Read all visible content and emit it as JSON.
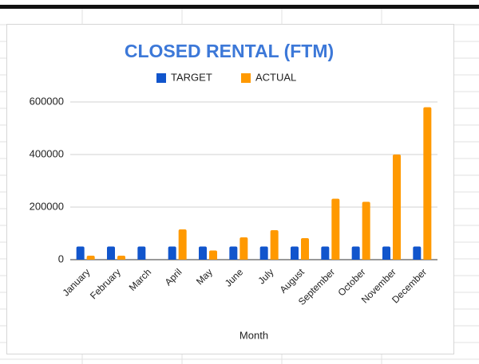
{
  "chart_data": {
    "type": "bar",
    "title": "CLOSED RENTAL (FTM)",
    "x_label": "Month",
    "categories": [
      "January",
      "February",
      "March",
      "April",
      "May",
      "June",
      "July",
      "August",
      "September",
      "October",
      "November",
      "December"
    ],
    "series": [
      {
        "name": "TARGET",
        "color": "#1155cc",
        "values": [
          50000,
          50000,
          50000,
          50000,
          50000,
          50000,
          50000,
          50000,
          50000,
          50000,
          50000,
          50000
        ]
      },
      {
        "name": "ACTUAL",
        "color": "#ff9900",
        "values": [
          15000,
          15000,
          0,
          115000,
          35000,
          85000,
          112000,
          82000,
          232000,
          220000,
          400000,
          580000
        ]
      }
    ],
    "ylim": [
      0,
      600000
    ],
    "yticks": [
      0,
      200000,
      400000,
      600000
    ],
    "grid": true,
    "legend": "top"
  }
}
